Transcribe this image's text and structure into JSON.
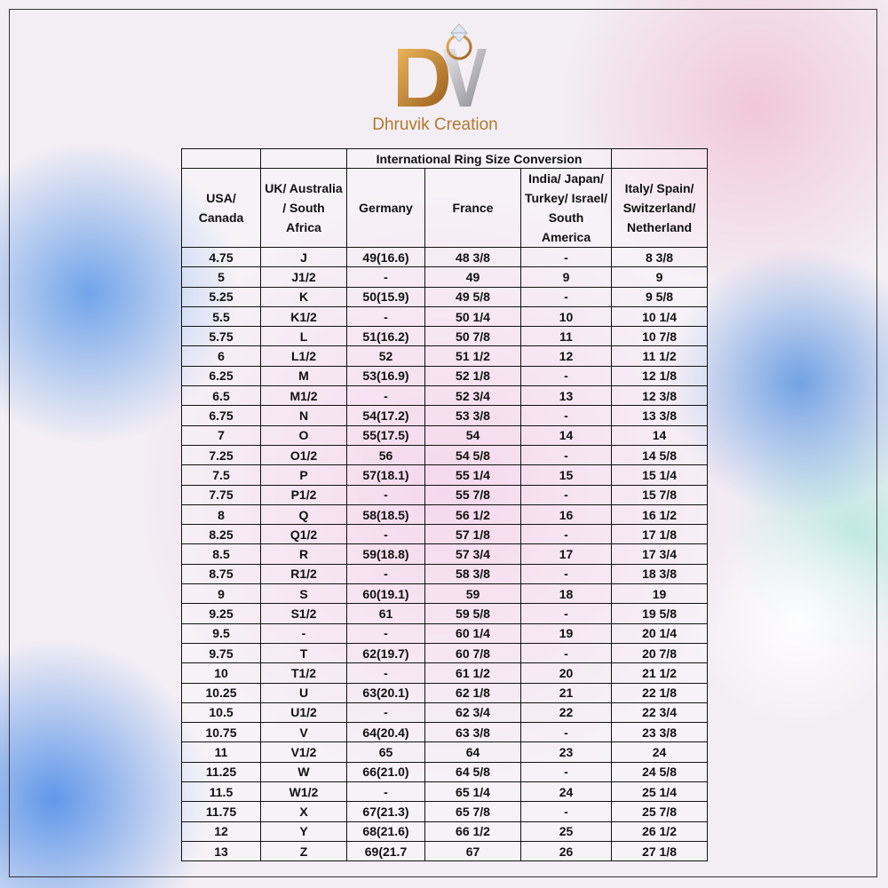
{
  "logo": {
    "brand": "Dhruvik Creation"
  },
  "table": {
    "title": "International Ring Size Conversion",
    "headers": [
      "USA/ Canada",
      "UK/ Australia / South Africa",
      "Germany",
      "France",
      "India/ Japan/ Turkey/ Israel/ South America",
      "Italy/ Spain/ Switzerland/ Netherland"
    ],
    "rows": [
      [
        "4.75",
        "J",
        "49(16.6)",
        "48 3/8",
        "-",
        "8 3/8"
      ],
      [
        "5",
        "J1/2",
        "-",
        "49",
        "9",
        "9"
      ],
      [
        "5.25",
        "K",
        "50(15.9)",
        "49 5/8",
        "-",
        "9 5/8"
      ],
      [
        "5.5",
        "K1/2",
        "-",
        "50 1/4",
        "10",
        "10 1/4"
      ],
      [
        "5.75",
        "L",
        "51(16.2)",
        "50 7/8",
        "11",
        "10 7/8"
      ],
      [
        "6",
        "L1/2",
        "52",
        "51 1/2",
        "12",
        "11 1/2"
      ],
      [
        "6.25",
        "M",
        "53(16.9)",
        "52 1/8",
        "-",
        "12 1/8"
      ],
      [
        "6.5",
        "M1/2",
        "-",
        "52 3/4",
        "13",
        "12 3/8"
      ],
      [
        "6.75",
        "N",
        "54(17.2)",
        "53 3/8",
        "-",
        "13 3/8"
      ],
      [
        "7",
        "O",
        "55(17.5)",
        "54",
        "14",
        "14"
      ],
      [
        "7.25",
        "O1/2",
        "56",
        "54 5/8",
        "-",
        "14 5/8"
      ],
      [
        "7.5",
        "P",
        "57(18.1)",
        "55 1/4",
        "15",
        "15 1/4"
      ],
      [
        "7.75",
        "P1/2",
        "-",
        "55 7/8",
        "-",
        "15 7/8"
      ],
      [
        "8",
        "Q",
        "58(18.5)",
        "56 1/2",
        "16",
        "16 1/2"
      ],
      [
        "8.25",
        "Q1/2",
        "-",
        "57 1/8",
        "-",
        "17 1/8"
      ],
      [
        "8.5",
        "R",
        "59(18.8)",
        "57 3/4",
        "17",
        "17 3/4"
      ],
      [
        "8.75",
        "R1/2",
        "-",
        "58 3/8",
        "-",
        "18 3/8"
      ],
      [
        "9",
        "S",
        "60(19.1)",
        "59",
        "18",
        "19"
      ],
      [
        "9.25",
        "S1/2",
        "61",
        "59 5/8",
        "-",
        "19 5/8"
      ],
      [
        "9.5",
        "-",
        "-",
        "60 1/4",
        "19",
        "20 1/4"
      ],
      [
        "9.75",
        "T",
        "62(19.7)",
        "60 7/8",
        "-",
        "20 7/8"
      ],
      [
        "10",
        "T1/2",
        "-",
        "61 1/2",
        "20",
        "21 1/2"
      ],
      [
        "10.25",
        "U",
        "63(20.1)",
        "62 1/8",
        "21",
        "22 1/8"
      ],
      [
        "10.5",
        "U1/2",
        "-",
        "62 3/4",
        "22",
        "22 3/4"
      ],
      [
        "10.75",
        "V",
        "64(20.4)",
        "63 3/8",
        "-",
        "23 3/8"
      ],
      [
        "11",
        "V1/2",
        "65",
        "64",
        "23",
        "24"
      ],
      [
        "11.25",
        "W",
        "66(21.0)",
        "64 5/8",
        "-",
        "24 5/8"
      ],
      [
        "11.5",
        "W1/2",
        "-",
        "65 1/4",
        "24",
        "25 1/4"
      ],
      [
        "11.75",
        "X",
        "67(21.3)",
        "65 7/8",
        "-",
        "25 7/8"
      ],
      [
        "12",
        "Y",
        "68(21.6)",
        "66 1/2",
        "25",
        "26 1/2"
      ],
      [
        "13",
        "Z",
        "69(21.7",
        "67",
        "26",
        "27 1/8"
      ]
    ]
  }
}
